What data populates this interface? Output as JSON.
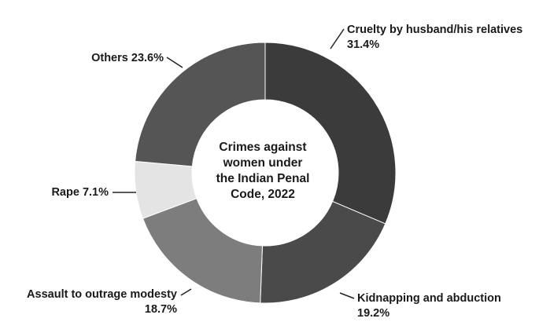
{
  "chart_data": {
    "type": "pie",
    "variant": "donut",
    "title_lines": [
      "Crimes against",
      "women under",
      "the Indian Penal",
      "Code, 2022"
    ],
    "slices": [
      {
        "label": "Cruelty by husband/his relatives",
        "value_label": "31.4%",
        "value": 31.4,
        "color": "#3b3b3b"
      },
      {
        "label": "Kidnapping and abduction",
        "value_label": "19.2%",
        "value": 19.2,
        "color": "#4a4a4a"
      },
      {
        "label": "Assault to outrage modesty",
        "value_label": "18.7%",
        "value": 18.7,
        "color": "#7d7d7d"
      },
      {
        "label": "Rape",
        "value_label": "7.1%",
        "value": 7.1,
        "color": "#e4e4e4"
      },
      {
        "label": "Others",
        "value_label": "23.6%",
        "value": 23.6,
        "color": "#555555"
      }
    ]
  }
}
